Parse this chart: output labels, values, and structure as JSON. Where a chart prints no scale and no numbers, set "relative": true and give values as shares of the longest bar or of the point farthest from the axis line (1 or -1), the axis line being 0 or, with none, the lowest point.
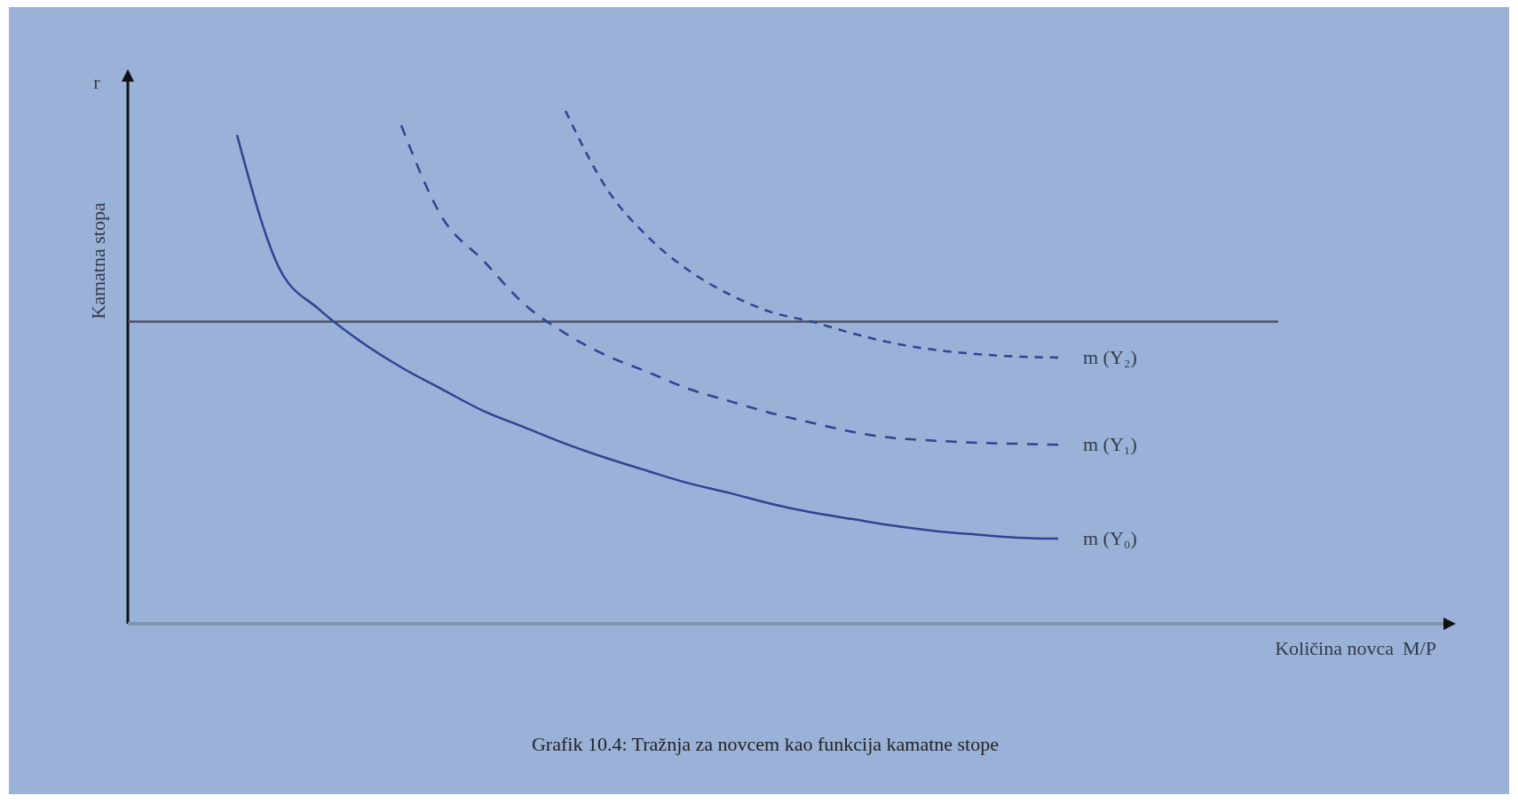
{
  "chart_data": {
    "type": "line",
    "relative": true,
    "legend": false,
    "annotations": [
      "r",
      "M/P",
      "Grafik 10.4: Tražnja za novcem kao funkcija kamatne stope",
      "Kamatna stopa",
      "Količina novca"
    ],
    "categories": [
      null,
      null,
      null,
      null,
      null,
      null,
      null,
      null,
      null,
      null,
      null,
      null,
      null,
      null,
      null,
      null,
      null,
      null,
      null,
      null,
      null
    ],
    "ref_lines": [
      {
        "axis": "y",
        "value": 0.589,
        "color": "#4a5365",
        "line_style": "solid"
      }
    ],
    "series": [
      {
        "name": "m (Y₀)",
        "color": "#2f4494",
        "line_style": "solid",
        "values": [
          0.953,
          0.698,
          0.613,
          0.551,
          0.5,
          0.457,
          0.415,
          0.383,
          0.351,
          0.323,
          0.298,
          0.274,
          0.255,
          0.234,
          0.217,
          0.204,
          0.191,
          0.181,
          0.174,
          0.168,
          0.166
        ]
      },
      {
        "name": "m (Y₁)",
        "color": "#2f4494",
        "line_style": "dashed",
        "values": [
          null,
          null,
          null,
          null,
          0.972,
          0.792,
          0.708,
          0.623,
          0.566,
          0.523,
          0.491,
          0.458,
          0.434,
          0.411,
          0.392,
          0.374,
          0.362,
          0.357,
          0.353,
          0.351,
          0.349
        ]
      },
      {
        "name": "m (Y₂)",
        "color": "#2f4494",
        "line_style": "dashed",
        "values": [
          null,
          null,
          null,
          null,
          null,
          null,
          null,
          null,
          1,
          0.849,
          0.755,
          0.689,
          0.642,
          0.608,
          0.589,
          0.566,
          0.547,
          0.534,
          0.526,
          0.521,
          0.519
        ]
      }
    ]
  }
}
